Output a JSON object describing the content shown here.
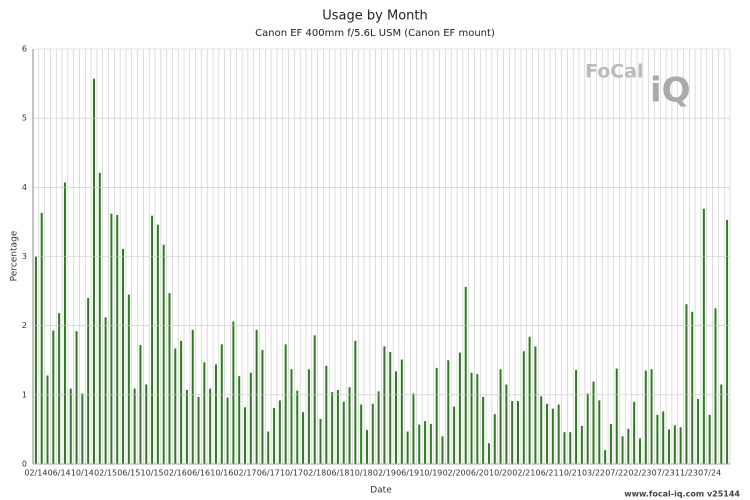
{
  "chart_data": {
    "type": "bar",
    "title": "Usage by Month",
    "subtitle": "Canon EF 400mm f/5.6L USM (Canon EF mount)",
    "x_label": "Date",
    "y_label": "Percentage",
    "footer": "www.focal-iq.com  v25144",
    "logo": "FoCal",
    "logo_mark": "iQ",
    "categories": [
      "02/14",
      null,
      null,
      null,
      "06/14",
      null,
      null,
      null,
      "10/14",
      null,
      null,
      null,
      "02/15",
      null,
      null,
      null,
      "06/15",
      null,
      null,
      null,
      "10/15",
      null,
      null,
      null,
      "02/16",
      null,
      null,
      null,
      "06/16",
      null,
      null,
      null,
      "10/16",
      null,
      null,
      null,
      "02/17",
      null,
      null,
      null,
      "06/17",
      null,
      null,
      null,
      "10/17",
      null,
      null,
      null,
      "02/18",
      null,
      null,
      null,
      "06/18",
      null,
      null,
      null,
      "10/18",
      null,
      null,
      null,
      "02/19",
      null,
      null,
      null,
      "06/19",
      null,
      null,
      null,
      "10/19",
      null,
      null,
      null,
      "02/20",
      null,
      null,
      null,
      "06/20",
      null,
      null,
      null,
      "10/20",
      null,
      null,
      null,
      "02/21",
      null,
      null,
      null,
      "06/21",
      null,
      null,
      null,
      "10/21",
      null,
      null,
      null,
      "03/22",
      null,
      null,
      null,
      "07/22",
      null,
      null,
      null,
      "02/23",
      null,
      null,
      null,
      "07/23",
      null,
      null,
      null,
      "11/23",
      null,
      null,
      null,
      "07/24",
      null,
      null,
      null
    ],
    "values": [
      3.0,
      3.63,
      1.28,
      1.93,
      2.18,
      4.07,
      1.09,
      1.92,
      1.02,
      2.4,
      5.57,
      4.21,
      2.12,
      3.62,
      3.6,
      3.11,
      2.45,
      1.09,
      1.72,
      1.15,
      3.59,
      3.46,
      3.17,
      2.47,
      1.67,
      1.78,
      1.07,
      1.94,
      0.97,
      1.47,
      1.09,
      1.44,
      1.73,
      0.96,
      2.06,
      1.27,
      0.82,
      1.32,
      1.94,
      1.65,
      0.47,
      0.81,
      0.92,
      1.73,
      1.37,
      1.06,
      0.75,
      1.37,
      1.86,
      0.65,
      1.42,
      1.04,
      1.07,
      0.9,
      1.11,
      1.78,
      0.86,
      0.49,
      0.87,
      1.05,
      1.7,
      1.62,
      1.34,
      1.51,
      0.47,
      1.02,
      0.57,
      0.62,
      0.58,
      1.39,
      0.4,
      1.5,
      0.83,
      1.61,
      2.56,
      1.32,
      1.3,
      0.97,
      0.3,
      0.72,
      1.37,
      1.15,
      0.91,
      0.91,
      1.63,
      1.84,
      1.7,
      0.98,
      0.87,
      0.8,
      0.86,
      0.46,
      0.46,
      1.36,
      0.55,
      1.02,
      1.19,
      0.92,
      0.2,
      0.58,
      1.38,
      0.4,
      0.51,
      0.9,
      0.37,
      1.35,
      1.37,
      0.71,
      0.76,
      0.5,
      0.56,
      0.53,
      2.31,
      2.2,
      0.94,
      3.69,
      0.71,
      2.25,
      1.15,
      3.53
    ],
    "color": "#2d7a1f",
    "ylim": [
      0,
      6
    ],
    "yticks": [
      0,
      1,
      2,
      3,
      4,
      5,
      6
    ],
    "grid": true
  }
}
